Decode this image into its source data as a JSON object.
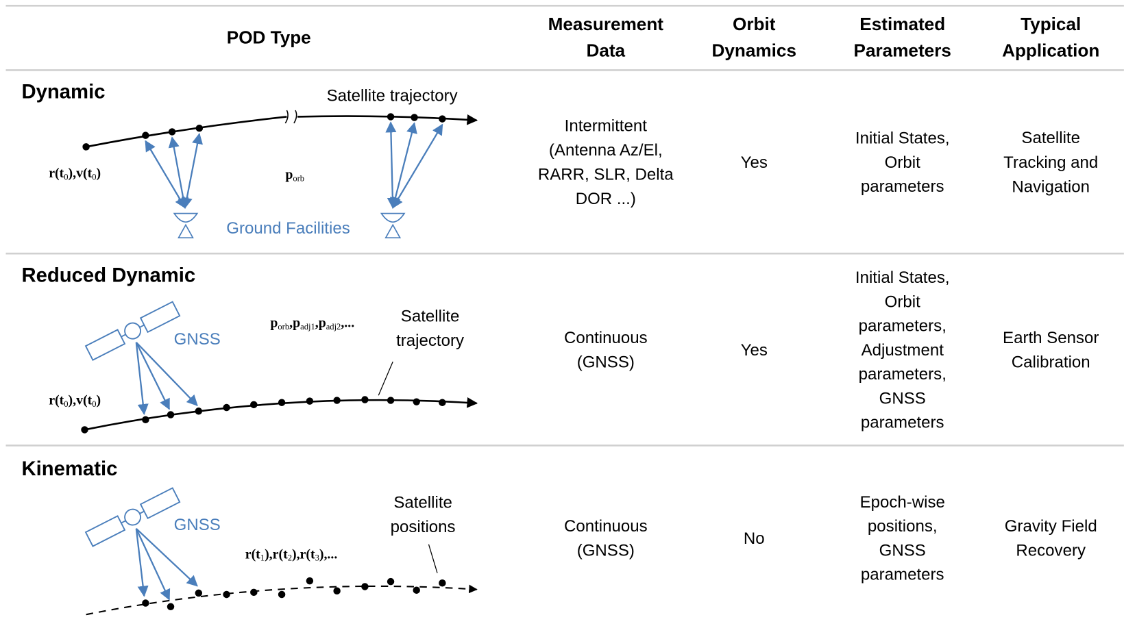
{
  "header": {
    "columns": [
      [
        "POD Type"
      ],
      [
        "Measurement",
        "Data"
      ],
      [
        "Orbit",
        "Dynamics"
      ],
      [
        "Estimated",
        "Parameters"
      ],
      [
        "Typical",
        "Application"
      ]
    ]
  },
  "rows": [
    {
      "name": "Dynamic",
      "diagram": {
        "trajectory_label": [
          "Satellite trajectory"
        ],
        "initial_state": [
          "r(t",
          "0",
          "),v(t",
          "0",
          ")"
        ],
        "parameters": [
          "p",
          "orb"
        ],
        "facilities": "Ground Facilities"
      },
      "measurement": [
        "Intermittent",
        "(Antenna Az/El,",
        "RARR, SLR, Delta",
        "DOR ...)"
      ],
      "orbit_dynamics": "Yes",
      "estimated": [
        "Initial States,",
        "Orbit",
        "parameters"
      ],
      "application": [
        "Satellite",
        "Tracking and",
        "Navigation"
      ]
    },
    {
      "name": "Reduced Dynamic",
      "diagram": {
        "gnss": "GNSS",
        "parameters": [
          "p",
          "orb",
          ",p",
          "adj1",
          ",p",
          "adj2",
          ",..."
        ],
        "trajectory_label": [
          "Satellite",
          "trajectory"
        ],
        "initial_state": [
          "r(t",
          "0",
          "),v(t",
          "0",
          ")"
        ]
      },
      "measurement": [
        "Continuous",
        "(GNSS)"
      ],
      "orbit_dynamics": "Yes",
      "estimated": [
        "Initial States,",
        "Orbit",
        "parameters,",
        "Adjustment",
        "parameters,",
        "GNSS",
        "parameters"
      ],
      "application": [
        "Earth Sensor",
        "Calibration"
      ]
    },
    {
      "name": "Kinematic",
      "diagram": {
        "gnss": "GNSS",
        "positions": [
          "r(t",
          "1",
          "),r(t",
          "2",
          "),r(t",
          "3",
          "),..."
        ],
        "trajectory_label": [
          "Satellite",
          "positions"
        ]
      },
      "measurement": [
        "Continuous",
        "(GNSS)"
      ],
      "orbit_dynamics": "No",
      "estimated": [
        "Epoch-wise",
        "positions,",
        "GNSS",
        "parameters"
      ],
      "application": [
        "Gravity Field",
        "Recovery"
      ]
    }
  ]
}
